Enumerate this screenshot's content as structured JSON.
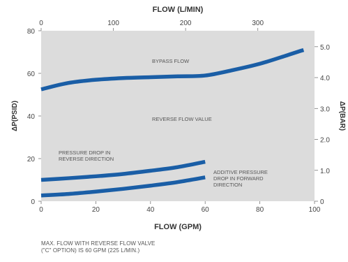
{
  "chart_data": {
    "type": "line",
    "title": "FLOW (L/MIN)",
    "xlabel": "FLOW (GPM)",
    "ylabel": "ΔP(PSID)",
    "y2label": "ΔP(BAR)",
    "xlim": [
      0,
      100
    ],
    "ylim": [
      0,
      80
    ],
    "x_ticks": [
      0,
      20,
      40,
      60,
      80,
      100
    ],
    "y_ticks": [
      0,
      20,
      40,
      60,
      80
    ],
    "x2_ticks": [
      0,
      100,
      200,
      300
    ],
    "y2_ticks": [
      "0",
      "1.0",
      "2.0",
      "3.0",
      "4.0",
      "5.0"
    ],
    "grid": false,
    "line_color": "#1a5ea6",
    "plot_bg": "#dcdcdc",
    "series": [
      {
        "name": "BYPASS FLOW",
        "x": [
          0,
          10,
          20,
          30,
          40,
          50,
          60,
          70,
          80,
          90,
          96
        ],
        "y": [
          52.5,
          55.5,
          57,
          57.8,
          58.2,
          58.6,
          59,
          61.5,
          64.5,
          68.5,
          71
        ]
      },
      {
        "name": "PRESSURE DROP IN REVERSE DIRECTION",
        "x": [
          0,
          10,
          20,
          30,
          40,
          50,
          60
        ],
        "y": [
          10,
          10.8,
          11.7,
          12.8,
          14.3,
          16,
          18.5
        ]
      },
      {
        "name": "ADDITIVE PRESSURE DROP IN FORWARD DIRECTION",
        "x": [
          0,
          10,
          20,
          30,
          40,
          50,
          60
        ],
        "y": [
          2.7,
          3.4,
          4.5,
          5.8,
          7.3,
          9.0,
          11.2
        ]
      }
    ],
    "annotations": {
      "bypass": "BYPASS FLOW",
      "reverse_valve": "REVERSE FLOW VALUE",
      "reverse_line1": "PRESSURE DROP IN",
      "reverse_line2": "REVERSE DIRECTION",
      "additive_line1": "ADDITIVE PRESSURE",
      "additive_line2": "DROP IN FORWARD",
      "additive_line3": "DIRECTION"
    }
  },
  "footnote": {
    "line1": "MAX. FLOW WITH REVERSE FLOW VALVE",
    "line2": "(\"C\" OPTION) IS 60 GPM (225 L/MIN.)"
  }
}
